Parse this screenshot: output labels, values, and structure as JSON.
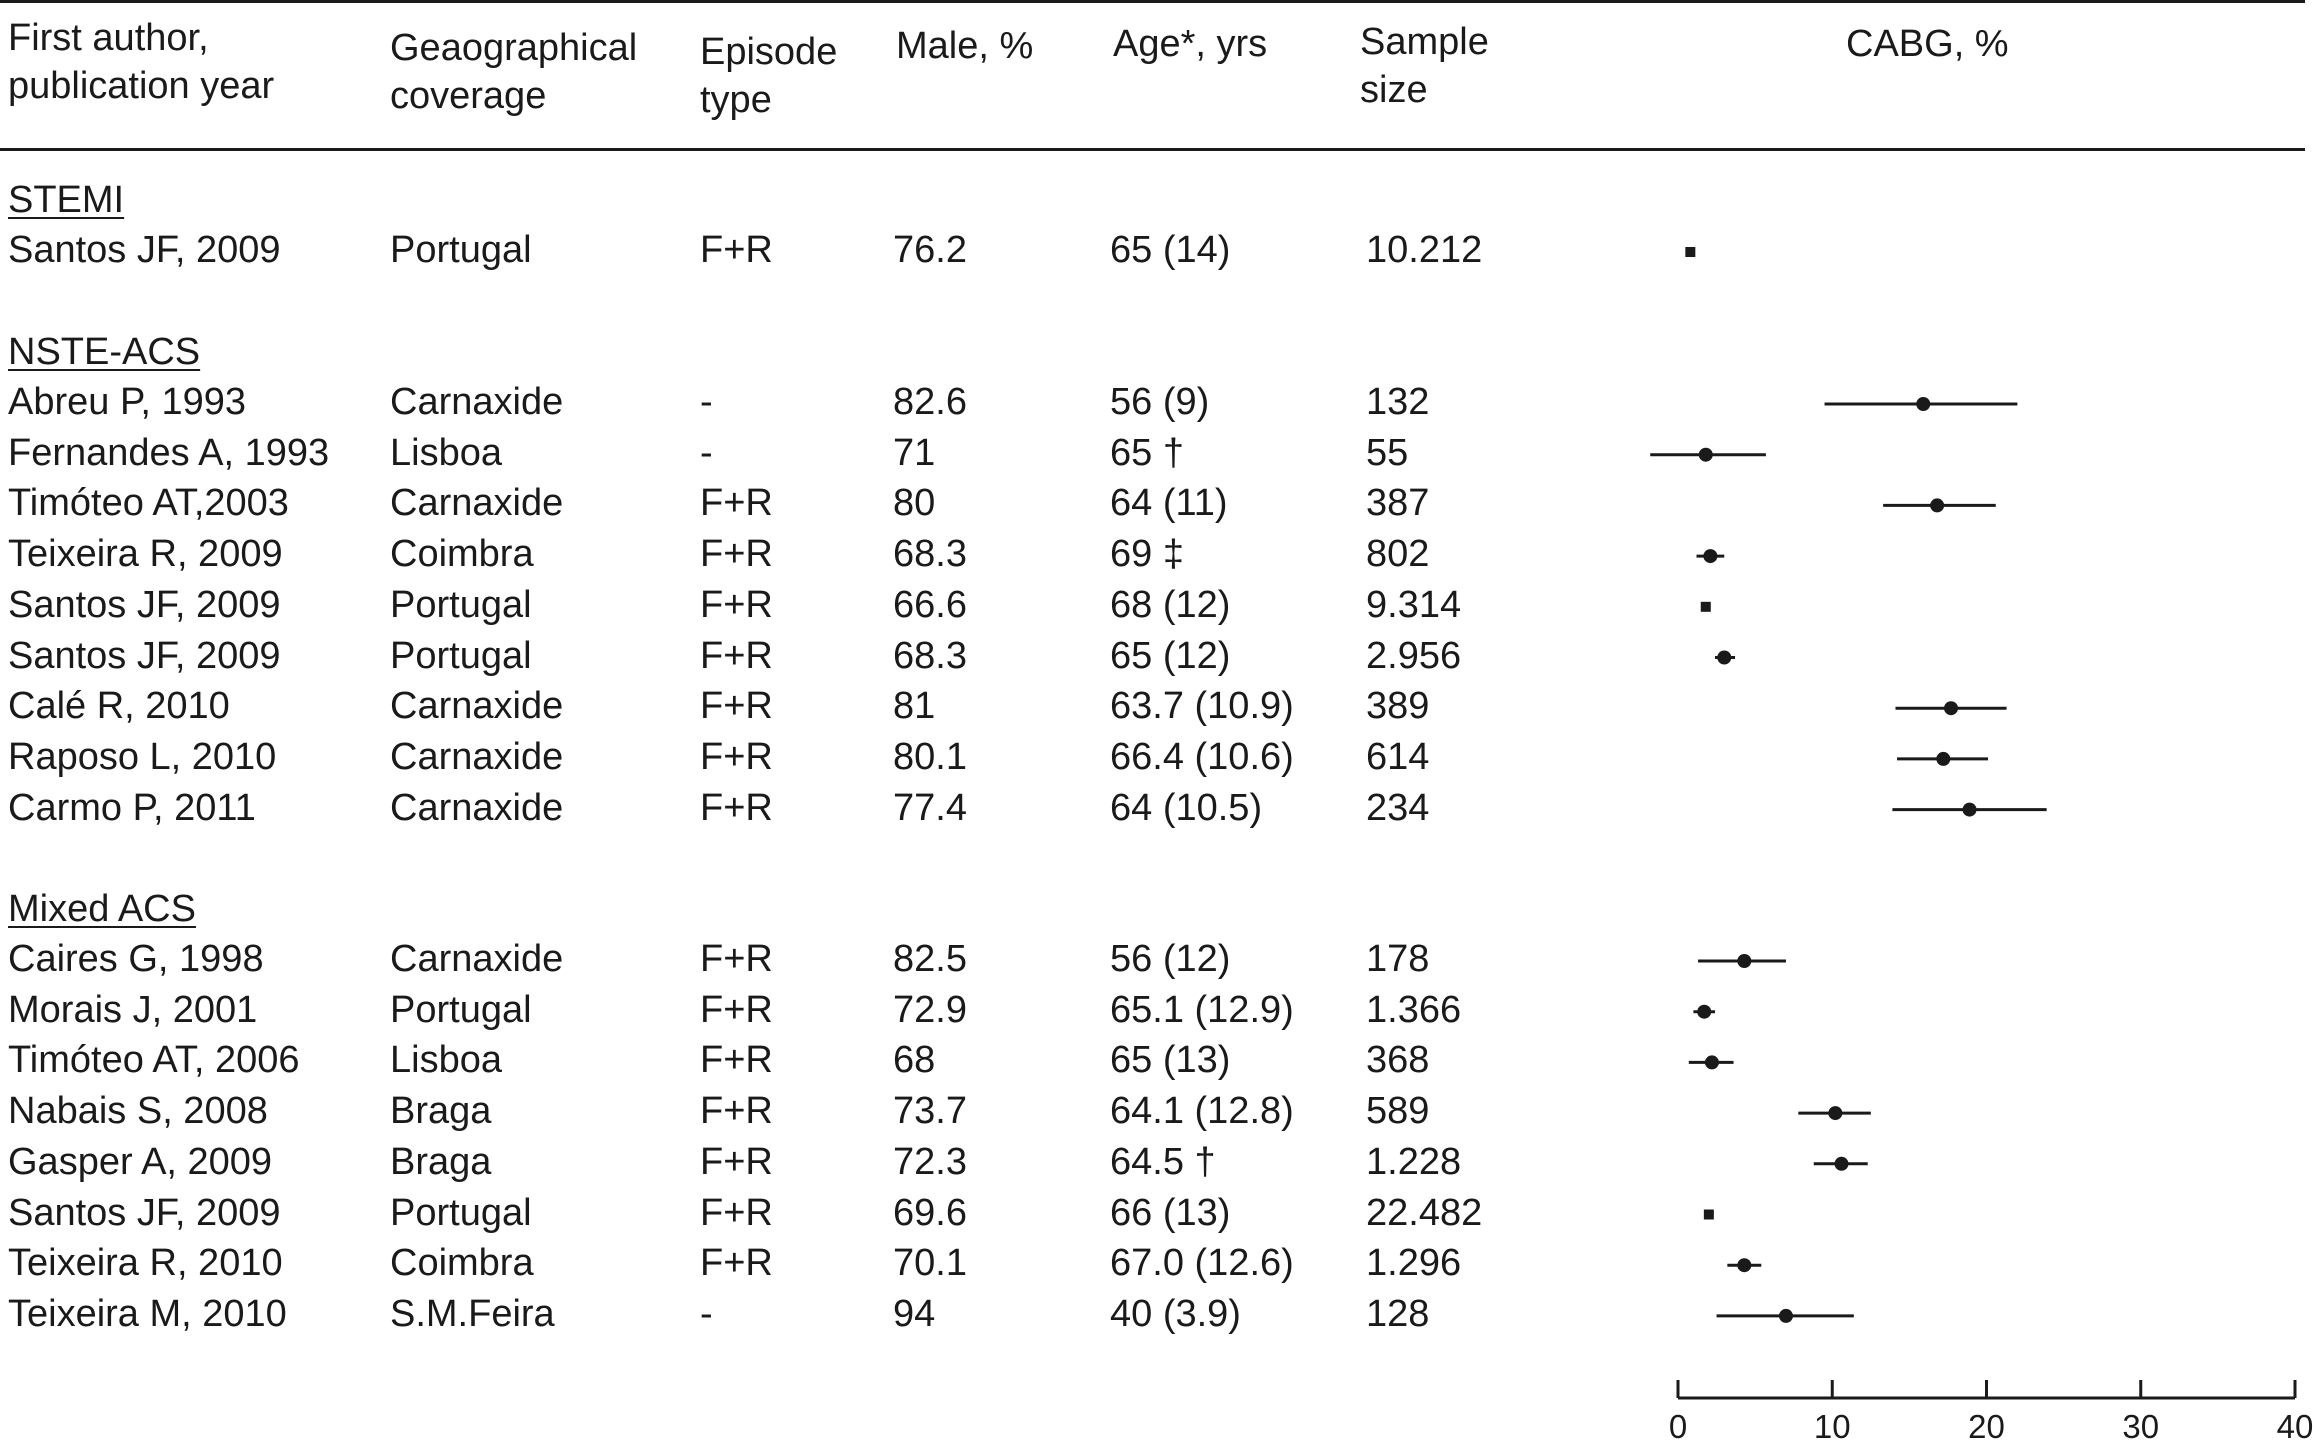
{
  "headers": {
    "author": "First author,\npublication year",
    "geo": "Geaographical\ncoverage",
    "episode": "Episode\ntype",
    "male": "Male, %",
    "age": "Age*, yrs",
    "sample": "Sample\nsize",
    "cabg": "CABG, %"
  },
  "groups": [
    {
      "label": "STEMI",
      "rows": [
        {
          "author": "Santos JF, 2009",
          "geo": "Portugal",
          "episode": "F+R",
          "male": "76.2",
          "age": "65 (14)",
          "sample": "10.212"
        }
      ]
    },
    {
      "label": "NSTE-ACS",
      "rows": [
        {
          "author": "Abreu P, 1993",
          "geo": "Carnaxide",
          "episode": "-",
          "male": "82.6",
          "age": "56 (9)",
          "sample": "132"
        },
        {
          "author": "Fernandes A, 1993",
          "geo": "Lisboa",
          "episode": "-",
          "male": "71",
          "age": "65 †",
          "sample": "55"
        },
        {
          "author": "Timóteo AT,2003",
          "geo": "Carnaxide",
          "episode": "F+R",
          "male": "80",
          "age": "64 (11)",
          "sample": "387"
        },
        {
          "author": "Teixeira R, 2009",
          "geo": "Coimbra",
          "episode": "F+R",
          "male": "68.3",
          "age": "69 ‡",
          "sample": "802"
        },
        {
          "author": "Santos JF, 2009",
          "geo": "Portugal",
          "episode": "F+R",
          "male": "66.6",
          "age": "68 (12)",
          "sample": "9.314"
        },
        {
          "author": "Santos JF, 2009",
          "geo": "Portugal",
          "episode": "F+R",
          "male": "68.3",
          "age": "65 (12)",
          "sample": "2.956"
        },
        {
          "author": "Calé R, 2010",
          "geo": "Carnaxide",
          "episode": "F+R",
          "male": "81",
          "age": "63.7 (10.9)",
          "sample": "389"
        },
        {
          "author": "Raposo L, 2010",
          "geo": "Carnaxide",
          "episode": "F+R",
          "male": "80.1",
          "age": "66.4 (10.6)",
          "sample": "614"
        },
        {
          "author": "Carmo P, 2011",
          "geo": "Carnaxide",
          "episode": "F+R",
          "male": "77.4",
          "age": "64 (10.5)",
          "sample": "234"
        }
      ]
    },
    {
      "label": "Mixed ACS",
      "rows": [
        {
          "author": "Caires G, 1998",
          "geo": "Carnaxide",
          "episode": "F+R",
          "male": "82.5",
          "age": "56 (12)",
          "sample": "178"
        },
        {
          "author": "Morais J, 2001",
          "geo": "Portugal",
          "episode": "F+R",
          "male": "72.9",
          "age": "65.1 (12.9)",
          "sample": "1.366"
        },
        {
          "author": "Timóteo AT, 2006",
          "geo": "Lisboa",
          "episode": "F+R",
          "male": "68",
          "age": "65 (13)",
          "sample": "368"
        },
        {
          "author": "Nabais S, 2008",
          "geo": "Braga",
          "episode": "F+R",
          "male": "73.7",
          "age": "64.1 (12.8)",
          "sample": "589"
        },
        {
          "author": "Gasper A, 2009",
          "geo": "Braga",
          "episode": "F+R",
          "male": "72.3",
          "age": "64.5 †",
          "sample": "1.228"
        },
        {
          "author": "Santos JF, 2009",
          "geo": "Portugal",
          "episode": "F+R",
          "male": "69.6",
          "age": "66 (13)",
          "sample": "22.482"
        },
        {
          "author": "Teixeira R, 2010",
          "geo": "Coimbra",
          "episode": "F+R",
          "male": "70.1",
          "age": "67.0 (12.6)",
          "sample": "1.296"
        },
        {
          "author": "Teixeira M, 2010",
          "geo": "S.M.Feira",
          "episode": "-",
          "male": "94",
          "age": "40 (3.9)",
          "sample": "128"
        }
      ]
    }
  ],
  "chart_data": {
    "type": "forest",
    "title": "CABG, %",
    "xlim": [
      0,
      40
    ],
    "xticks": [
      0,
      10,
      20,
      30,
      40
    ],
    "grid": false,
    "series": [
      {
        "group": "STEMI",
        "points": [
          {
            "label": "Santos JF, 2009",
            "estimate": 0.8,
            "ci": [
              0.7,
              0.9
            ]
          }
        ]
      },
      {
        "group": "NSTE-ACS",
        "points": [
          {
            "label": "Abreu P, 1993",
            "estimate": 15.9,
            "ci": [
              9.5,
              22.0
            ]
          },
          {
            "label": "Fernandes A, 1993",
            "estimate": 1.8,
            "ci": [
              -1.8,
              5.7
            ]
          },
          {
            "label": "Timóteo AT,2003",
            "estimate": 16.8,
            "ci": [
              13.3,
              20.6
            ]
          },
          {
            "label": "Teixeira R, 2009",
            "estimate": 2.1,
            "ci": [
              1.2,
              3.0
            ]
          },
          {
            "label": "Santos JF, 2009",
            "estimate": 1.8,
            "ci": [
              1.6,
              2.0
            ]
          },
          {
            "label": "Santos JF, 2009",
            "estimate": 3.0,
            "ci": [
              2.4,
              3.7
            ]
          },
          {
            "label": "Calé R, 2010",
            "estimate": 17.7,
            "ci": [
              14.1,
              21.3
            ]
          },
          {
            "label": "Raposo L, 2010",
            "estimate": 17.2,
            "ci": [
              14.2,
              20.1
            ]
          },
          {
            "label": "Carmo P, 2011",
            "estimate": 18.9,
            "ci": [
              13.9,
              23.9
            ]
          }
        ]
      },
      {
        "group": "Mixed ACS",
        "points": [
          {
            "label": "Caires G, 1998",
            "estimate": 4.3,
            "ci": [
              1.3,
              7.0
            ]
          },
          {
            "label": "Morais J, 2001",
            "estimate": 1.7,
            "ci": [
              1.0,
              2.4
            ]
          },
          {
            "label": "Timóteo AT, 2006",
            "estimate": 2.2,
            "ci": [
              0.7,
              3.6
            ]
          },
          {
            "label": "Nabais S, 2008",
            "estimate": 10.2,
            "ci": [
              7.8,
              12.5
            ]
          },
          {
            "label": "Gasper A, 2009",
            "estimate": 10.6,
            "ci": [
              8.8,
              12.3
            ]
          },
          {
            "label": "Santos JF, 2009",
            "estimate": 2.0,
            "ci": [
              1.8,
              2.2
            ]
          },
          {
            "label": "Teixeira R, 2010",
            "estimate": 4.3,
            "ci": [
              3.2,
              5.4
            ]
          },
          {
            "label": "Teixeira M, 2010",
            "estimate": 7.0,
            "ci": [
              2.5,
              11.4
            ]
          }
        ]
      }
    ]
  }
}
